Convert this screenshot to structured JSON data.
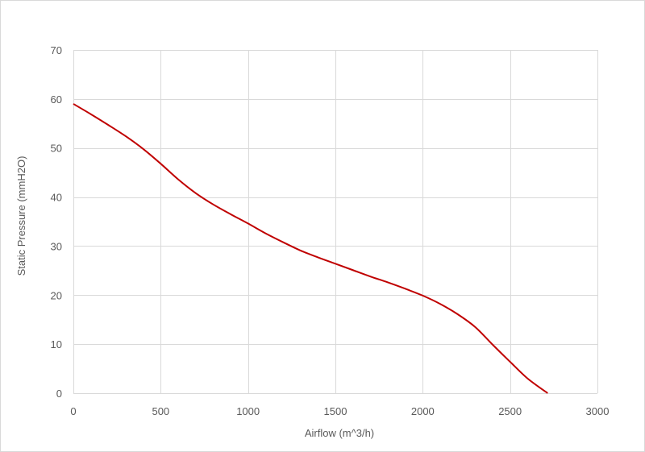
{
  "chart_data": {
    "type": "line",
    "title": "",
    "xlabel": "Airflow (m^3/h)",
    "ylabel": "Static Pressure (mmH2O)",
    "xlim": [
      0,
      3000
    ],
    "ylim": [
      0,
      70
    ],
    "x_ticks": [
      0,
      500,
      1000,
      1500,
      2000,
      2500,
      3000
    ],
    "y_ticks": [
      0,
      10,
      20,
      30,
      40,
      50,
      60,
      70
    ],
    "x_tick_labels": [
      "0",
      "500",
      "1000",
      "1500",
      "2000",
      "2500",
      "3000"
    ],
    "y_tick_labels": [
      "0",
      "10",
      "20",
      "30",
      "40",
      "50",
      "60",
      "70"
    ],
    "grid": true,
    "legend": "none",
    "series": [
      {
        "color": "#c00000",
        "x": [
          0,
          100,
          200,
          300,
          400,
          500,
          600,
          700,
          800,
          900,
          1000,
          1100,
          1200,
          1300,
          1400,
          1500,
          1600,
          1700,
          1800,
          1900,
          2000,
          2100,
          2200,
          2300,
          2400,
          2500,
          2600,
          2715
        ],
        "y": [
          59,
          56.9,
          54.7,
          52.4,
          49.8,
          46.8,
          43.6,
          40.8,
          38.5,
          36.5,
          34.6,
          32.6,
          30.8,
          29.1,
          27.7,
          26.4,
          25.1,
          23.8,
          22.6,
          21.3,
          19.9,
          18.2,
          16.1,
          13.5,
          9.9,
          6.4,
          3.0,
          0
        ]
      }
    ]
  }
}
